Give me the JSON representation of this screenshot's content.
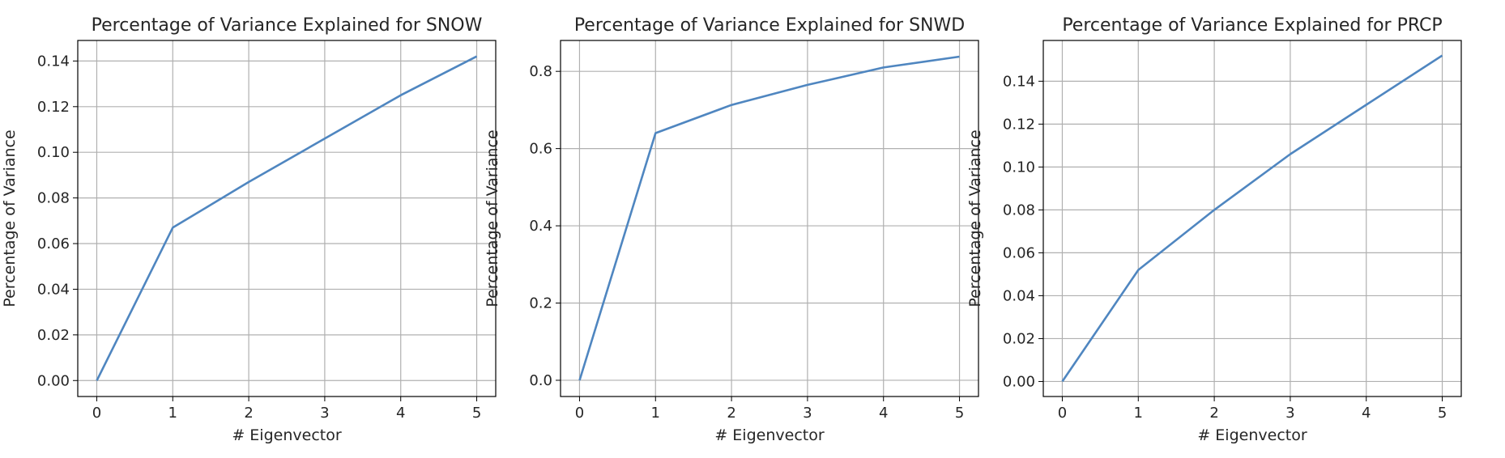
{
  "chart_data": [
    {
      "type": "line",
      "title": "Percentage of Variance Explained for SNOW",
      "xlabel": "# Eigenvector",
      "ylabel": "Percentage of Variance",
      "x": [
        0,
        1,
        2,
        3,
        4,
        5
      ],
      "series": [
        {
          "values": [
            0.0,
            0.067,
            0.087,
            0.106,
            0.125,
            0.142
          ]
        }
      ],
      "xlim": [
        -0.25,
        5.25
      ],
      "ylim": [
        -0.007,
        0.149
      ],
      "xticks": [
        "0",
        "1",
        "2",
        "3",
        "4",
        "5"
      ],
      "yticks": [
        "0.00",
        "0.02",
        "0.04",
        "0.06",
        "0.08",
        "0.10",
        "0.12",
        "0.14"
      ],
      "grid": true,
      "color": "#4f86c0"
    },
    {
      "type": "line",
      "title": "Percentage of Variance Explained for SNWD",
      "xlabel": "# Eigenvector",
      "ylabel": "Percentage of Variance",
      "x": [
        0,
        1,
        2,
        3,
        4,
        5
      ],
      "series": [
        {
          "values": [
            0.0,
            0.64,
            0.713,
            0.765,
            0.81,
            0.838
          ]
        }
      ],
      "xlim": [
        -0.25,
        5.25
      ],
      "ylim": [
        -0.042,
        0.88
      ],
      "xticks": [
        "0",
        "1",
        "2",
        "3",
        "4",
        "5"
      ],
      "yticks": [
        "0.0",
        "0.2",
        "0.4",
        "0.6",
        "0.8"
      ],
      "grid": true,
      "color": "#4f86c0"
    },
    {
      "type": "line",
      "title": "Percentage of Variance Explained for PRCP",
      "xlabel": "# Eigenvector",
      "ylabel": "Percentage of Variance",
      "x": [
        0,
        1,
        2,
        3,
        4,
        5
      ],
      "series": [
        {
          "values": [
            0.0,
            0.052,
            0.08,
            0.106,
            0.129,
            0.152
          ]
        }
      ],
      "xlim": [
        -0.25,
        5.25
      ],
      "ylim": [
        -0.007,
        0.159
      ],
      "xticks": [
        "0",
        "1",
        "2",
        "3",
        "4",
        "5"
      ],
      "yticks": [
        "0.00",
        "0.02",
        "0.04",
        "0.06",
        "0.08",
        "0.10",
        "0.12",
        "0.14"
      ],
      "grid": true,
      "color": "#4f86c0"
    }
  ]
}
